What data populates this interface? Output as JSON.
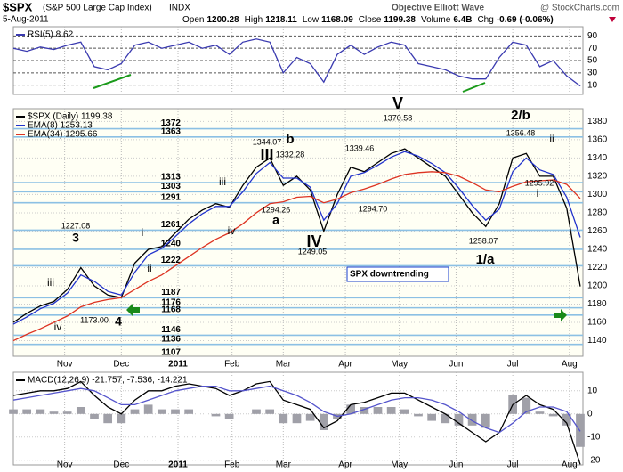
{
  "header": {
    "ticker": "$SPX",
    "name": "(S&P 500 Large Cap Index)",
    "exchange": "INDX",
    "brand": "Objective Elliott Wave",
    "source": "@ StockCharts.com",
    "date": "5-Aug-2011",
    "quote": [
      {
        "label": "Open",
        "value": 1200.28
      },
      {
        "label": "High",
        "value": 1218.11
      },
      {
        "label": "Low",
        "value": 1168.09
      },
      {
        "label": "Close",
        "value": 1199.38
      },
      {
        "label": "Volume",
        "value": "6.4B"
      },
      {
        "label": "Chg",
        "value": "-0.69 (-0.06%)"
      }
    ]
  },
  "chart_data": [
    {
      "type": "line",
      "xlim": [
        0,
        211
      ],
      "ylim": [
        -5,
        105
      ],
      "yticks": [
        10,
        30,
        50,
        70,
        90
      ],
      "grid": true,
      "x": [
        0,
        5,
        10,
        15,
        20,
        25,
        30,
        35,
        40,
        45,
        50,
        55,
        60,
        65,
        70,
        75,
        80,
        85,
        90,
        95,
        100,
        105,
        110,
        115,
        120,
        125,
        130,
        135,
        140,
        145,
        150,
        155,
        160,
        165,
        170,
        175,
        180,
        185,
        190,
        195,
        200,
        205,
        210
      ],
      "series": [
        {
          "name": "RSI(5) 8.62",
          "color": "#3a3ab0",
          "values": [
            70,
            65,
            72,
            68,
            75,
            80,
            40,
            35,
            45,
            75,
            80,
            70,
            75,
            80,
            70,
            75,
            60,
            80,
            85,
            80,
            30,
            55,
            45,
            15,
            60,
            75,
            60,
            72,
            80,
            75,
            45,
            40,
            35,
            25,
            20,
            20,
            55,
            80,
            75,
            40,
            50,
            25,
            8.62
          ]
        }
      ]
    },
    {
      "type": "line",
      "xlim": [
        0,
        211
      ],
      "ylim": [
        1123,
        1394
      ],
      "yticks": [
        1140,
        1160,
        1180,
        1200,
        1220,
        1240,
        1260,
        1280,
        1300,
        1320,
        1340,
        1360,
        1380
      ],
      "grid": true,
      "xticks": [
        {
          "value": 19,
          "label": "Nov"
        },
        {
          "value": 40,
          "label": "Dec"
        },
        {
          "value": 61,
          "label": "2011"
        },
        {
          "value": 81,
          "label": "Feb"
        },
        {
          "value": 100,
          "label": "Mar"
        },
        {
          "value": 123,
          "label": "Apr"
        },
        {
          "value": 143,
          "label": "May"
        },
        {
          "value": 164,
          "label": "Jun"
        },
        {
          "value": 185,
          "label": "Jul"
        },
        {
          "value": 206,
          "label": "Aug"
        }
      ],
      "x": [
        0,
        5,
        10,
        15,
        20,
        25,
        30,
        35,
        40,
        45,
        50,
        55,
        60,
        65,
        70,
        75,
        80,
        85,
        90,
        95,
        100,
        105,
        110,
        115,
        120,
        125,
        130,
        135,
        140,
        145,
        150,
        155,
        160,
        165,
        170,
        175,
        180,
        185,
        190,
        195,
        200,
        205,
        210
      ],
      "series": [
        {
          "name": "$SPX (Daily) 1199.38",
          "color": "#000000",
          "values": [
            1160,
            1170,
            1178,
            1183,
            1196,
            1220,
            1200,
            1190,
            1187,
            1225,
            1240,
            1243,
            1258,
            1273,
            1283,
            1290,
            1286,
            1310,
            1330,
            1340,
            1310,
            1320,
            1305,
            1260,
            1300,
            1330,
            1325,
            1335,
            1345,
            1350,
            1340,
            1330,
            1320,
            1300,
            1280,
            1265,
            1290,
            1340,
            1345,
            1320,
            1320,
            1285,
            1199.38
          ]
        },
        {
          "name": "EMA(8) 1253.13",
          "color": "#2233cc",
          "values": [
            1158,
            1166,
            1175,
            1181,
            1192,
            1212,
            1205,
            1194,
            1190,
            1215,
            1234,
            1241,
            1254,
            1268,
            1279,
            1287,
            1287,
            1303,
            1323,
            1335,
            1318,
            1318,
            1308,
            1272,
            1290,
            1320,
            1324,
            1332,
            1341,
            1347,
            1342,
            1334,
            1324,
            1307,
            1288,
            1272,
            1284,
            1325,
            1340,
            1327,
            1322,
            1297,
            1253.13
          ]
        },
        {
          "name": "EMA(34) 1295.66",
          "color": "#dd3322",
          "values": [
            1140,
            1147,
            1153,
            1160,
            1167,
            1177,
            1182,
            1185,
            1187,
            1196,
            1205,
            1212,
            1222,
            1232,
            1242,
            1251,
            1258,
            1268,
            1280,
            1290,
            1292,
            1297,
            1298,
            1291,
            1295,
            1302,
            1306,
            1311,
            1317,
            1322,
            1324,
            1325,
            1324,
            1320,
            1313,
            1305,
            1303,
            1309,
            1314,
            1315,
            1316,
            1311,
            1295.66
          ]
        }
      ],
      "levels": [
        1372,
        1363,
        1313,
        1303,
        1291,
        1261,
        1240,
        1222,
        1187,
        1176,
        1168,
        1146,
        1136,
        1107
      ],
      "level_color": "#8cc0e4",
      "annotations": [
        {
          "text": "3",
          "color": "#000000"
        },
        {
          "text": "iii",
          "color": "#7a1f7a"
        },
        {
          "text": "iv",
          "color": "#7a1f7a"
        },
        {
          "text": "4",
          "color": "#000000"
        },
        {
          "text": "i",
          "color": "#7a1f7a"
        },
        {
          "text": "ii",
          "color": "#7a1f7a"
        },
        {
          "text": "iii",
          "color": "#7a1f7a"
        },
        {
          "text": "iv",
          "color": "#7a1f7a"
        },
        {
          "text": "III",
          "color": "#1a3fcc"
        },
        {
          "text": "b",
          "color": "#000000"
        },
        {
          "text": "a",
          "color": "#000000"
        },
        {
          "text": "IV",
          "color": "#1a3fcc"
        },
        {
          "text": "V",
          "color": "#1a3fcc"
        },
        {
          "text": "1/a",
          "color": "#000000"
        },
        {
          "text": "2/b",
          "color": "#000000"
        },
        {
          "text": "ii",
          "color": "#7a1f7a"
        },
        {
          "text": "i",
          "color": "#7a1f7a"
        },
        {
          "text": "1227.08",
          "color": "#000000"
        },
        {
          "text": "1173.00",
          "color": "#000000"
        },
        {
          "text": "1344.07",
          "color": "#000000"
        },
        {
          "text": "1332.28",
          "color": "#000000"
        },
        {
          "text": "1294.26",
          "color": "#000000"
        },
        {
          "text": "1249.05",
          "color": "#000000"
        },
        {
          "text": "1339.46",
          "color": "#000000"
        },
        {
          "text": "1294.70",
          "color": "#000000"
        },
        {
          "text": "1370.58",
          "color": "#000000"
        },
        {
          "text": "1258.07",
          "color": "#000000"
        },
        {
          "text": "1356.48",
          "color": "#000000"
        },
        {
          "text": "1295.92",
          "color": "#000000"
        }
      ],
      "callout": "SPX downtrending"
    },
    {
      "type": "line",
      "xlim": [
        0,
        211
      ],
      "ylim": [
        -22,
        18
      ],
      "yticks": [
        -20,
        -10,
        0,
        10
      ],
      "grid": true,
      "legend": "MACD(12,26,9) -21.757, -7.536, -14.221",
      "xticks": [
        {
          "value": 19,
          "label": "Nov"
        },
        {
          "value": 40,
          "label": "Dec"
        },
        {
          "value": 61,
          "label": "2011"
        },
        {
          "value": 81,
          "label": "Feb"
        },
        {
          "value": 100,
          "label": "Mar"
        },
        {
          "value": 123,
          "label": "Apr"
        },
        {
          "value": 143,
          "label": "May"
        },
        {
          "value": 164,
          "label": "Jun"
        },
        {
          "value": 185,
          "label": "Jul"
        },
        {
          "value": 206,
          "label": "Aug"
        }
      ],
      "x": [
        0,
        5,
        10,
        15,
        20,
        25,
        30,
        35,
        40,
        45,
        50,
        55,
        60,
        65,
        70,
        75,
        80,
        85,
        90,
        95,
        100,
        105,
        110,
        115,
        120,
        125,
        130,
        135,
        140,
        145,
        150,
        155,
        160,
        165,
        170,
        175,
        180,
        185,
        190,
        195,
        200,
        205,
        210
      ],
      "series": [
        {
          "type": "bar",
          "color": "#a0a0a8",
          "values": [
            2,
            2,
            2,
            1,
            1,
            3,
            -2,
            -4,
            -4,
            2,
            4,
            2,
            2,
            2,
            0,
            -1,
            -2,
            0,
            2,
            2,
            -4,
            -4,
            -3,
            -7,
            -2,
            4,
            3,
            3,
            3,
            2,
            -1,
            -3,
            -4,
            -5,
            -5,
            -6,
            0,
            8,
            7,
            1,
            -1,
            -5,
            -14.221
          ]
        },
        {
          "color": "#000000",
          "values": [
            8,
            9,
            10,
            10,
            11,
            14,
            8,
            3,
            0,
            6,
            10,
            10,
            12,
            13,
            12,
            11,
            8,
            10,
            13,
            14,
            6,
            4,
            2,
            -6,
            -3,
            4,
            5,
            7,
            9,
            9,
            6,
            3,
            0,
            -4,
            -8,
            -12,
            -8,
            4,
            8,
            4,
            2,
            -4,
            -21.757
          ]
        },
        {
          "color": "#5555cc",
          "values": [
            6,
            7,
            8,
            9,
            10,
            11,
            10,
            7,
            4,
            4,
            6,
            8,
            10,
            11,
            12,
            12,
            10,
            10,
            11,
            12,
            10,
            8,
            5,
            1,
            -1,
            0,
            2,
            4,
            6,
            7,
            7,
            6,
            4,
            1,
            -3,
            -6,
            -8,
            -4,
            1,
            3,
            3,
            1,
            -7.536
          ]
        }
      ]
    }
  ]
}
